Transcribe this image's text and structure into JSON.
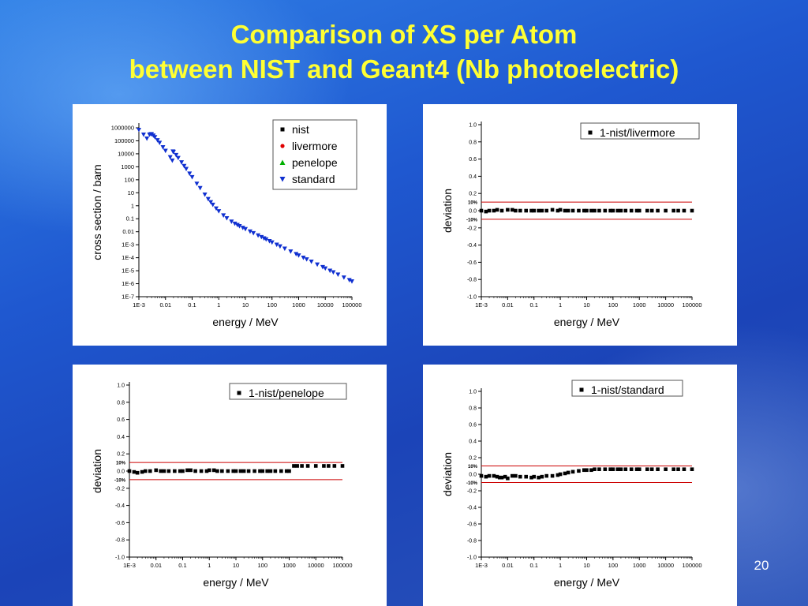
{
  "slide": {
    "title_line1": "Comparison of XS per Atom",
    "title_line2": "between NIST and Geant4 (Nb photoelectric)",
    "page_number": "20"
  },
  "chart_data": [
    {
      "id": "xs",
      "type": "scatter",
      "xscale": "log",
      "yscale": "log",
      "xlabel": "energy / MeV",
      "ylabel": "cross section / barn",
      "xlim": [
        0.001,
        100000
      ],
      "ylim": [
        1e-07,
        1000000
      ],
      "xticks": [
        0.001,
        0.01,
        0.1,
        1,
        10,
        100,
        1000,
        10000,
        100000
      ],
      "xtick_labels": [
        "1E-3",
        "0.01",
        "0.1",
        "1",
        "10",
        "100",
        "1000",
        "10000",
        "100000"
      ],
      "yticks": [
        1e-07,
        1e-06,
        1e-05,
        0.0001,
        0.001,
        0.01,
        0.1,
        1,
        10,
        100,
        1000,
        10000,
        100000,
        1000000
      ],
      "ytick_labels": [
        "1E-7",
        "1E-6",
        "1E-5",
        "1E-4",
        "1E-3",
        "0.01",
        "0.1",
        "1",
        "10",
        "100",
        "1000",
        "10000",
        "100000",
        "1000000"
      ],
      "legend_position": "top-right",
      "legend": [
        "nist",
        "livermore",
        "penelope",
        "standard"
      ],
      "legend_colors": [
        "#000000",
        "#e00000",
        "#00b000",
        "#1030d0"
      ],
      "legend_markers": [
        "square",
        "circle",
        "triangle-up",
        "triangle-down"
      ],
      "grid": false,
      "series": [
        {
          "name": "standard",
          "color": "#1030d0",
          "x": [
            0.001,
            0.0015,
            0.002,
            0.0025,
            0.00285,
            0.003,
            0.0035,
            0.004,
            0.005,
            0.006,
            0.008,
            0.01,
            0.015,
            0.018,
            0.019,
            0.02,
            0.025,
            0.03,
            0.04,
            0.05,
            0.06,
            0.08,
            0.1,
            0.15,
            0.2,
            0.3,
            0.4,
            0.5,
            0.6,
            0.8,
            1,
            1.5,
            2,
            3,
            4,
            5,
            6,
            8,
            10,
            15,
            20,
            30,
            40,
            50,
            60,
            80,
            100,
            150,
            200,
            300,
            500,
            800,
            1000,
            1500,
            2000,
            3000,
            5000,
            8000,
            10000,
            15000,
            20000,
            30000,
            50000,
            80000,
            100000
          ],
          "y": [
            700000,
            300000,
            150000,
            300000,
            330000,
            320000,
            250000,
            190000,
            110000,
            70000,
            32000,
            17000,
            5500,
            3000,
            15000,
            14000,
            8000,
            4800,
            2200,
            1150,
            680,
            300,
            160,
            50,
            23,
            7.2,
            3.3,
            1.9,
            1.2,
            0.62,
            0.38,
            0.18,
            0.11,
            0.06,
            0.042,
            0.033,
            0.027,
            0.02,
            0.016,
            0.0105,
            0.0078,
            0.0052,
            0.0039,
            0.0031,
            0.0026,
            0.0019,
            0.0015,
            0.001,
            0.00075,
            0.0005,
            0.0003,
            0.00019,
            0.00015,
            0.0001,
            7.5e-05,
            5e-05,
            3e-05,
            1.9e-05,
            1.5e-05,
            1e-05,
            7.5e-06,
            5e-06,
            3e-06,
            1.9e-06,
            1.5e-06
          ]
        }
      ]
    },
    {
      "id": "livermore",
      "type": "scatter",
      "xscale": "log",
      "xlabel": "energy / MeV",
      "ylabel": "deviation",
      "xlim": [
        0.001,
        100000
      ],
      "ylim": [
        -1.0,
        1.0
      ],
      "xticks": [
        0.001,
        0.01,
        0.1,
        1,
        10,
        100,
        1000,
        10000,
        100000
      ],
      "xtick_labels": [
        "1E-3",
        "0.01",
        "0.1",
        "1",
        "10",
        "100",
        "1000",
        "10000",
        "100000"
      ],
      "yticks": [
        1.0,
        0.8,
        0.6,
        0.4,
        0.2,
        0.0,
        -0.2,
        -0.4,
        -0.6,
        -0.8,
        -1.0
      ],
      "ytick_labels": [
        "1.0",
        "0.8",
        "0.6",
        "0.4",
        "0.2",
        "0.0",
        "-0.2",
        "-0.4",
        "-0.6",
        "-0.8",
        "-1.0"
      ],
      "band": [
        -0.1,
        0.1
      ],
      "band_labels": [
        "10%",
        "-10%"
      ],
      "legend_position": "top-right",
      "legend": [
        "1-nist/livermore"
      ],
      "series": [
        {
          "name": "1-nist/livermore",
          "x": [
            0.001,
            0.0015,
            0.002,
            0.003,
            0.004,
            0.006,
            0.01,
            0.015,
            0.02,
            0.03,
            0.05,
            0.08,
            0.1,
            0.15,
            0.2,
            0.3,
            0.5,
            0.8,
            1,
            1.5,
            2,
            3,
            5,
            8,
            10,
            15,
            20,
            30,
            50,
            80,
            100,
            150,
            200,
            300,
            500,
            800,
            1000,
            2000,
            3000,
            5000,
            10000,
            20000,
            30000,
            50000,
            100000
          ],
          "y": [
            0.0,
            -0.01,
            0.0,
            0.0,
            0.01,
            0.0,
            0.01,
            0.01,
            0.0,
            0.0,
            0.0,
            0.0,
            0.0,
            0.0,
            0.0,
            0.0,
            0.01,
            0.0,
            0.01,
            0.0,
            0.0,
            0.0,
            0.0,
            0.0,
            0.0,
            0.0,
            0.0,
            0.0,
            0.0,
            0.0,
            0.0,
            0.0,
            0.0,
            0.0,
            0.0,
            0.0,
            0.0,
            0.0,
            0.0,
            0.0,
            0.0,
            0.0,
            0.0,
            0.0,
            0.0
          ]
        }
      ]
    },
    {
      "id": "penelope",
      "type": "scatter",
      "xscale": "log",
      "xlabel": "energy / MeV",
      "ylabel": "deviation",
      "xlim": [
        0.001,
        100000
      ],
      "ylim": [
        -1.0,
        1.0
      ],
      "xticks": [
        0.001,
        0.01,
        0.1,
        1,
        10,
        100,
        1000,
        10000,
        100000
      ],
      "xtick_labels": [
        "1E-3",
        "0.01",
        "0.1",
        "1",
        "10",
        "100",
        "1000",
        "10000",
        "100000"
      ],
      "yticks": [
        1.0,
        0.8,
        0.6,
        0.4,
        0.2,
        0.0,
        -0.2,
        -0.4,
        -0.6,
        -0.8,
        -1.0
      ],
      "ytick_labels": [
        "1.0",
        "0.8",
        "0.6",
        "0.4",
        "0.2",
        "0.0",
        "-0.2",
        "-0.4",
        "-0.6",
        "-0.8",
        "-1.0"
      ],
      "band": [
        -0.1,
        0.1
      ],
      "band_labels": [
        "10%",
        "-10%"
      ],
      "legend_position": "top-right",
      "legend": [
        "1-nist/penelope"
      ],
      "series": [
        {
          "name": "1-nist/penelope",
          "x": [
            0.001,
            0.0015,
            0.002,
            0.003,
            0.004,
            0.006,
            0.01,
            0.015,
            0.02,
            0.03,
            0.05,
            0.08,
            0.1,
            0.15,
            0.2,
            0.3,
            0.5,
            0.8,
            1,
            1.5,
            2,
            3,
            5,
            8,
            10,
            15,
            20,
            30,
            50,
            80,
            100,
            150,
            200,
            300,
            500,
            800,
            1000,
            1500,
            2000,
            3000,
            5000,
            10000,
            20000,
            30000,
            50000,
            100000
          ],
          "y": [
            0.0,
            -0.01,
            -0.02,
            -0.01,
            0.0,
            0.0,
            0.01,
            0.0,
            0.0,
            0.0,
            0.0,
            0.0,
            0.0,
            0.01,
            0.01,
            0.0,
            0.0,
            0.0,
            0.01,
            0.01,
            0.0,
            0.0,
            0.0,
            0.0,
            0.0,
            0.0,
            0.0,
            0.0,
            0.0,
            0.0,
            0.0,
            0.0,
            0.0,
            0.0,
            0.0,
            0.0,
            0.0,
            0.06,
            0.06,
            0.06,
            0.06,
            0.06,
            0.06,
            0.06,
            0.06,
            0.06
          ]
        }
      ]
    },
    {
      "id": "standard",
      "type": "scatter",
      "xscale": "log",
      "xlabel": "energy / MeV",
      "ylabel": "deviation",
      "xlim": [
        0.001,
        100000
      ],
      "ylim": [
        -1.0,
        1.0
      ],
      "xticks": [
        0.001,
        0.01,
        0.1,
        1,
        10,
        100,
        1000,
        10000,
        100000
      ],
      "xtick_labels": [
        "1E-3",
        "0.01",
        "0.1",
        "1",
        "10",
        "100",
        "1000",
        "10000",
        "100000"
      ],
      "yticks": [
        1.0,
        0.8,
        0.6,
        0.4,
        0.2,
        0.0,
        -0.2,
        -0.4,
        -0.6,
        -0.8,
        -1.0
      ],
      "ytick_labels": [
        "1.0",
        "0.8",
        "0.6",
        "0.4",
        "0.2",
        "0.0",
        "-0.2",
        "-0.4",
        "-0.6",
        "-0.8",
        "-1.0"
      ],
      "band": [
        -0.1,
        0.1
      ],
      "band_labels": [
        "10%",
        "-10%"
      ],
      "legend_position": "top-right",
      "legend": [
        "1-nist/standard"
      ],
      "series": [
        {
          "name": "1-nist/standard",
          "x": [
            0.001,
            0.0015,
            0.002,
            0.003,
            0.004,
            0.005,
            0.006,
            0.008,
            0.01,
            0.015,
            0.02,
            0.03,
            0.05,
            0.08,
            0.1,
            0.15,
            0.2,
            0.3,
            0.5,
            0.8,
            1,
            1.5,
            2,
            3,
            5,
            8,
            10,
            15,
            20,
            30,
            50,
            80,
            100,
            150,
            200,
            300,
            500,
            800,
            1000,
            2000,
            3000,
            5000,
            10000,
            20000,
            30000,
            50000,
            100000
          ],
          "y": [
            -0.02,
            -0.03,
            -0.02,
            -0.02,
            -0.03,
            -0.04,
            -0.04,
            -0.03,
            -0.05,
            -0.02,
            -0.02,
            -0.03,
            -0.03,
            -0.04,
            -0.03,
            -0.04,
            -0.03,
            -0.02,
            -0.02,
            -0.01,
            0.0,
            0.01,
            0.02,
            0.03,
            0.04,
            0.05,
            0.05,
            0.05,
            0.06,
            0.06,
            0.06,
            0.06,
            0.06,
            0.06,
            0.06,
            0.06,
            0.06,
            0.06,
            0.06,
            0.06,
            0.06,
            0.06,
            0.06,
            0.06,
            0.06,
            0.06,
            0.06
          ]
        }
      ]
    }
  ]
}
